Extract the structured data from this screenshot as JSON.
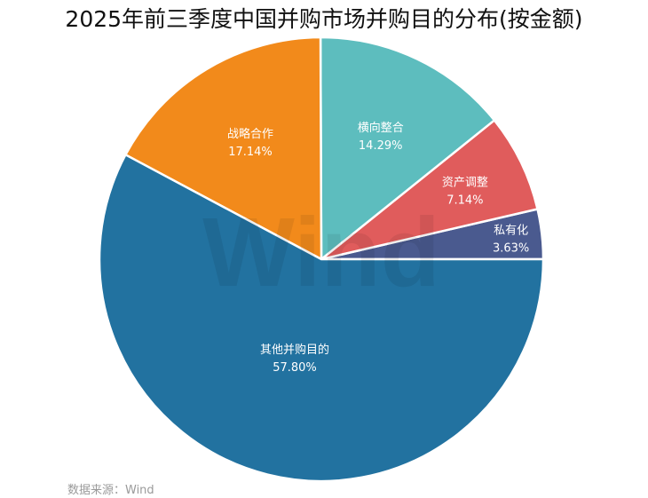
{
  "title": "2025年前三季度中国并购市场并购目的分布(按金额)",
  "source": "数据来源：Wind",
  "watermark": "Wind",
  "chart_data": {
    "type": "pie",
    "title": "2025年前三季度中国并购市场并购目的分布(按金额)",
    "categories": [
      "私有化",
      "资产调整",
      "横向整合",
      "战略合作",
      "其他并购目的"
    ],
    "values": [
      3.63,
      7.14,
      14.29,
      17.14,
      57.8
    ],
    "labels": [
      "3.63%",
      "7.14%",
      "14.29%",
      "17.14%",
      "57.80%"
    ],
    "colors": [
      "#4a5a8f",
      "#e05c5c",
      "#5dbdbe",
      "#f28a1b",
      "#2272a0"
    ],
    "start_angle_deg": 0,
    "direction": "counterclockwise",
    "legend": "none (labels inside slices)",
    "source": "数据来源：Wind"
  }
}
